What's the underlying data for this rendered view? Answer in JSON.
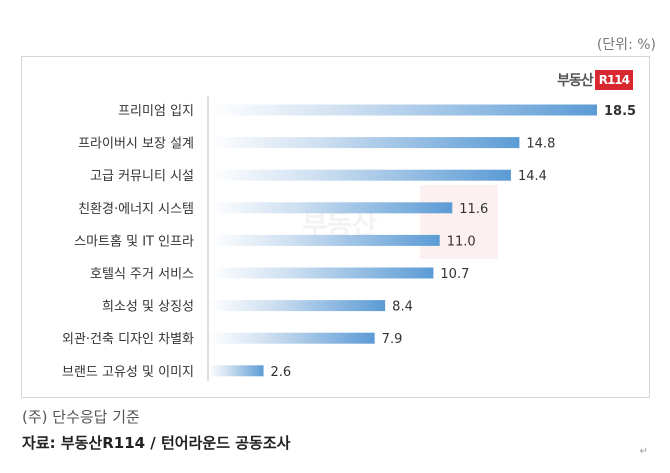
{
  "unit_label": "(단위: %)",
  "brand": {
    "text": "부동산",
    "box": "R114",
    "color": "#d7282f"
  },
  "watermark": {
    "text": "부동산",
    "box": "R114"
  },
  "note": "(주) 단수응답 기준",
  "source": "자료: 부동산R114 / 턴어라운드 공동조사",
  "return_mark": "↵",
  "chart_data": {
    "type": "bar",
    "orientation": "horizontal",
    "title": "",
    "xlabel": "",
    "ylabel": "",
    "xlim": [
      0,
      20
    ],
    "grid": false,
    "legend": "none",
    "bar_color": "#5b9bd5",
    "categories": [
      "프리미엄 입지",
      "프라이버시 보장 설계",
      "고급 커뮤니티 시설",
      "친환경·에너지 시스템",
      "스마트홈 및 IT 인프라",
      "호텔식 주거 서비스",
      "희소성 및 상징성",
      "외관·건축 디자인 차별화",
      "브랜드 고유성 및 이미지"
    ],
    "values": [
      18.5,
      14.8,
      14.4,
      11.6,
      11.0,
      10.7,
      8.4,
      7.9,
      2.6
    ],
    "labels": [
      "18.5",
      "14.8",
      "14.4",
      "11.6",
      "11.0",
      "10.7",
      "8.4",
      "7.9",
      "2.6"
    ]
  }
}
